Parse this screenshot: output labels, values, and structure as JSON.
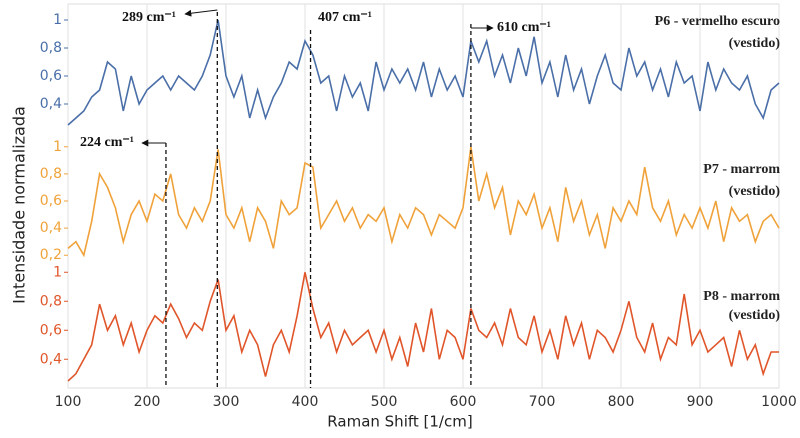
{
  "chart_data": {
    "type": "line",
    "xlabel": "Raman Shift [1/cm]",
    "ylabel": "Intensidade normalizada",
    "x": [
      100,
      110,
      120,
      130,
      140,
      150,
      160,
      170,
      180,
      190,
      200,
      210,
      220,
      230,
      240,
      250,
      260,
      270,
      280,
      290,
      300,
      310,
      320,
      330,
      340,
      350,
      360,
      370,
      380,
      390,
      400,
      410,
      420,
      430,
      440,
      450,
      460,
      470,
      480,
      490,
      500,
      510,
      520,
      530,
      540,
      550,
      560,
      570,
      580,
      590,
      600,
      610,
      620,
      630,
      640,
      650,
      660,
      670,
      680,
      690,
      700,
      710,
      720,
      730,
      740,
      750,
      760,
      770,
      780,
      790,
      800,
      810,
      820,
      830,
      840,
      850,
      860,
      870,
      880,
      890,
      900,
      910,
      920,
      930,
      940,
      950,
      960,
      970,
      980,
      990,
      1000
    ],
    "xlim": [
      100,
      1000
    ],
    "xticks": [
      100,
      200,
      300,
      400,
      500,
      600,
      700,
      800,
      900,
      1000
    ],
    "grid": true,
    "series": [
      {
        "name": "P6 - vermelho escuro",
        "note": "(vestido)",
        "color": "#4a6fa8",
        "ylim": [
          0.2,
          1.1
        ],
        "yticks": [
          {
            "value": 1,
            "label": "1"
          },
          {
            "value": 0.8,
            "label": "0,8"
          },
          {
            "value": 0.6,
            "label": "0,6"
          },
          {
            "value": 0.4,
            "label": "0,4"
          }
        ],
        "values": [
          0.25,
          0.3,
          0.35,
          0.45,
          0.5,
          0.7,
          0.65,
          0.35,
          0.6,
          0.4,
          0.5,
          0.55,
          0.6,
          0.5,
          0.6,
          0.55,
          0.5,
          0.6,
          0.75,
          1.0,
          0.6,
          0.45,
          0.6,
          0.3,
          0.5,
          0.3,
          0.45,
          0.55,
          0.7,
          0.65,
          0.85,
          0.75,
          0.55,
          0.6,
          0.35,
          0.6,
          0.45,
          0.55,
          0.35,
          0.7,
          0.5,
          0.65,
          0.55,
          0.65,
          0.5,
          0.7,
          0.45,
          0.65,
          0.5,
          0.6,
          0.45,
          0.85,
          0.7,
          0.85,
          0.6,
          0.75,
          0.55,
          0.8,
          0.6,
          0.88,
          0.55,
          0.7,
          0.45,
          0.75,
          0.5,
          0.65,
          0.4,
          0.6,
          0.75,
          0.55,
          0.5,
          0.8,
          0.6,
          0.7,
          0.5,
          0.65,
          0.45,
          0.7,
          0.55,
          0.6,
          0.35,
          0.7,
          0.5,
          0.65,
          0.55,
          0.5,
          0.6,
          0.4,
          0.3,
          0.5,
          0.55
        ]
      },
      {
        "name": "P7 - marrom",
        "note": "(vestido)",
        "color": "#f0a23a",
        "ylim": [
          0.15,
          1.05
        ],
        "yticks": [
          {
            "value": 1,
            "label": "1"
          },
          {
            "value": 0.8,
            "label": "0,8"
          },
          {
            "value": 0.6,
            "label": "0,6"
          },
          {
            "value": 0.4,
            "label": "0,4"
          },
          {
            "value": 0.2,
            "label": "0,2"
          }
        ],
        "values": [
          0.25,
          0.3,
          0.2,
          0.45,
          0.8,
          0.7,
          0.55,
          0.3,
          0.5,
          0.6,
          0.45,
          0.65,
          0.6,
          0.8,
          0.5,
          0.4,
          0.55,
          0.45,
          0.6,
          0.98,
          0.5,
          0.4,
          0.55,
          0.3,
          0.55,
          0.45,
          0.25,
          0.6,
          0.5,
          0.55,
          0.88,
          0.85,
          0.4,
          0.5,
          0.6,
          0.45,
          0.55,
          0.4,
          0.5,
          0.45,
          0.55,
          0.3,
          0.5,
          0.4,
          0.55,
          0.5,
          0.35,
          0.5,
          0.45,
          0.4,
          0.55,
          1.0,
          0.6,
          0.8,
          0.55,
          0.7,
          0.35,
          0.6,
          0.5,
          0.65,
          0.4,
          0.55,
          0.3,
          0.7,
          0.45,
          0.6,
          0.35,
          0.5,
          0.25,
          0.55,
          0.45,
          0.6,
          0.5,
          0.85,
          0.55,
          0.45,
          0.6,
          0.35,
          0.5,
          0.4,
          0.55,
          0.4,
          0.6,
          0.3,
          0.55,
          0.45,
          0.5,
          0.3,
          0.45,
          0.5,
          0.4
        ]
      },
      {
        "name": "P8 - marrom",
        "note": "(vestido)",
        "color": "#e0562a",
        "ylim": [
          0.25,
          1.05
        ],
        "yticks": [
          {
            "value": 1,
            "label": "1"
          },
          {
            "value": 0.8,
            "label": "0,8"
          },
          {
            "value": 0.6,
            "label": "0,6"
          },
          {
            "value": 0.4,
            "label": "0,4"
          }
        ],
        "values": [
          0.25,
          0.3,
          0.4,
          0.5,
          0.78,
          0.6,
          0.7,
          0.5,
          0.65,
          0.45,
          0.6,
          0.7,
          0.65,
          0.78,
          0.68,
          0.55,
          0.65,
          0.6,
          0.8,
          0.95,
          0.6,
          0.7,
          0.45,
          0.6,
          0.5,
          0.28,
          0.5,
          0.6,
          0.45,
          0.7,
          1.0,
          0.75,
          0.55,
          0.65,
          0.45,
          0.6,
          0.5,
          0.55,
          0.6,
          0.45,
          0.6,
          0.4,
          0.55,
          0.35,
          0.65,
          0.45,
          0.75,
          0.4,
          0.6,
          0.55,
          0.4,
          0.75,
          0.6,
          0.55,
          0.65,
          0.5,
          0.75,
          0.55,
          0.5,
          0.7,
          0.45,
          0.6,
          0.4,
          0.7,
          0.5,
          0.65,
          0.4,
          0.6,
          0.55,
          0.45,
          0.6,
          0.8,
          0.55,
          0.45,
          0.65,
          0.4,
          0.55,
          0.5,
          0.85,
          0.5,
          0.6,
          0.45,
          0.5,
          0.55,
          0.35,
          0.6,
          0.4,
          0.5,
          0.3,
          0.45,
          0.45
        ]
      }
    ],
    "annotations": [
      {
        "text": "289 cm⁻¹",
        "x": 289
      },
      {
        "text": "407 cm⁻¹",
        "x": 407
      },
      {
        "text": "610 cm⁻¹",
        "x": 610
      },
      {
        "text": "224 cm⁻¹",
        "x": 224
      }
    ]
  }
}
